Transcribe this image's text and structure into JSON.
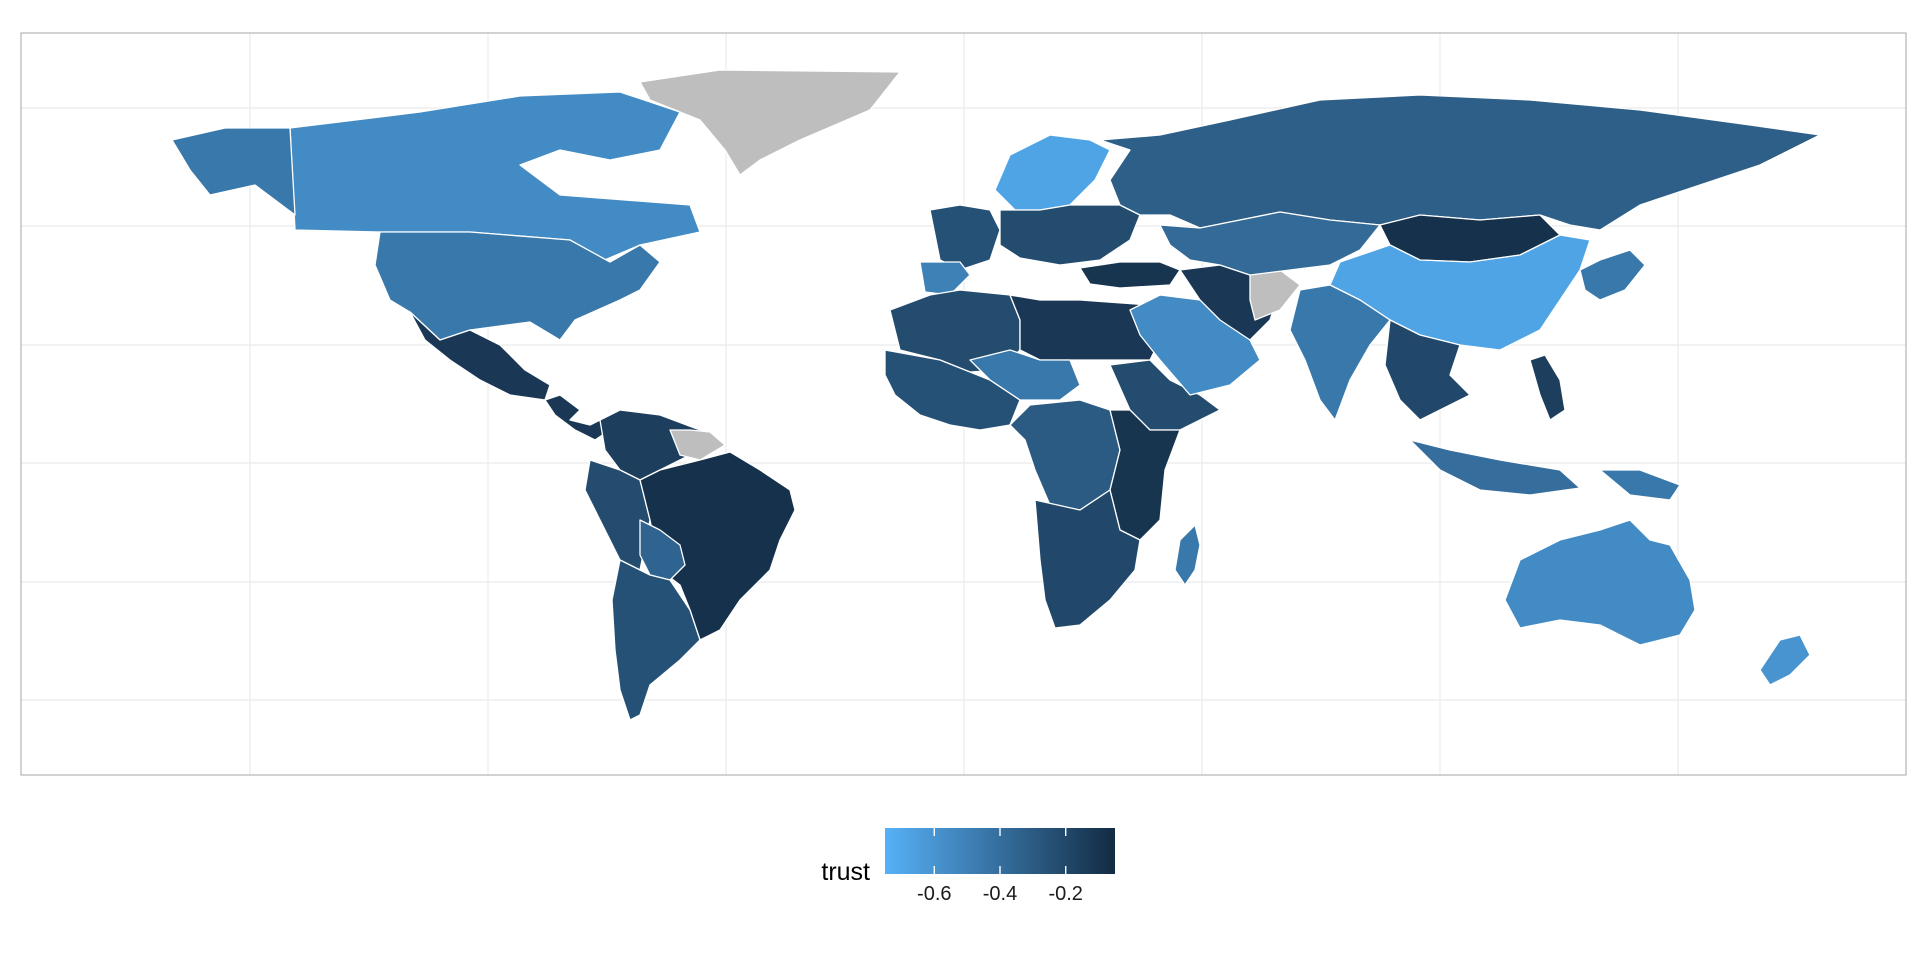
{
  "chart_data": {
    "type": "choropleth",
    "projection": "world, equirectangular-like",
    "grid": true,
    "legend": {
      "title": "trust",
      "placement": "bottom",
      "kind": "continuous colorbar",
      "tick_labels": [
        "-0.6",
        "-0.4",
        "-0.2"
      ],
      "tick_values": [
        -0.6,
        -0.4,
        -0.2
      ],
      "range": [
        -0.75,
        -0.05
      ],
      "low_color": "#56B1F7",
      "high_color": "#132B43"
    },
    "na_color": "#BEBEBE",
    "border_color": "#FFFFFF",
    "panel_border_color": "#B3B3B3",
    "grid_color": "#EBEBEB",
    "regions": [
      {
        "name": "Canada",
        "value": -0.55
      },
      {
        "name": "Alaska (USA)",
        "value": -0.45
      },
      {
        "name": "United States",
        "value": -0.45
      },
      {
        "name": "Greenland",
        "value": null
      },
      {
        "name": "Mexico",
        "value": -0.12
      },
      {
        "name": "Central America",
        "value": -0.12
      },
      {
        "name": "Colombia / Venezuela",
        "value": -0.15
      },
      {
        "name": "Guianas",
        "value": null
      },
      {
        "name": "Peru / Ecuador",
        "value": -0.22
      },
      {
        "name": "Brazil",
        "value": -0.08
      },
      {
        "name": "Bolivia",
        "value": -0.35
      },
      {
        "name": "Argentina / Chile",
        "value": -0.25
      },
      {
        "name": "Western Europe",
        "value": -0.25
      },
      {
        "name": "Iberia",
        "value": -0.5
      },
      {
        "name": "Scandinavia",
        "value": -0.68
      },
      {
        "name": "Eastern Europe",
        "value": -0.22
      },
      {
        "name": "Russia",
        "value": -0.32
      },
      {
        "name": "Turkey",
        "value": -0.1
      },
      {
        "name": "North Africa",
        "value": -0.22
      },
      {
        "name": "Libya / Egypt",
        "value": -0.12
      },
      {
        "name": "West Africa",
        "value": -0.25
      },
      {
        "name": "Niger / Chad",
        "value": -0.45
      },
      {
        "name": "Central Africa",
        "value": -0.3
      },
      {
        "name": "Horn of Africa",
        "value": -0.22
      },
      {
        "name": "East Africa",
        "value": -0.1
      },
      {
        "name": "Southern Africa",
        "value": -0.2
      },
      {
        "name": "Madagascar",
        "value": -0.45
      },
      {
        "name": "Saudi Arabia / Gulf",
        "value": -0.55
      },
      {
        "name": "Iran",
        "value": -0.12
      },
      {
        "name": "Afghanistan",
        "value": null
      },
      {
        "name": "Kazakhstan / Central Asia",
        "value": -0.38
      },
      {
        "name": "Mongolia",
        "value": -0.08
      },
      {
        "name": "China",
        "value": -0.68
      },
      {
        "name": "India",
        "value": -0.45
      },
      {
        "name": "Southeast Asia",
        "value": -0.2
      },
      {
        "name": "Japan / Korea",
        "value": -0.45
      },
      {
        "name": "Indonesia",
        "value": -0.4
      },
      {
        "name": "Philippines",
        "value": -0.15
      },
      {
        "name": "Papua New Guinea",
        "value": -0.45
      },
      {
        "name": "Australia",
        "value": -0.55
      },
      {
        "name": "New Zealand",
        "value": -0.6
      }
    ]
  }
}
